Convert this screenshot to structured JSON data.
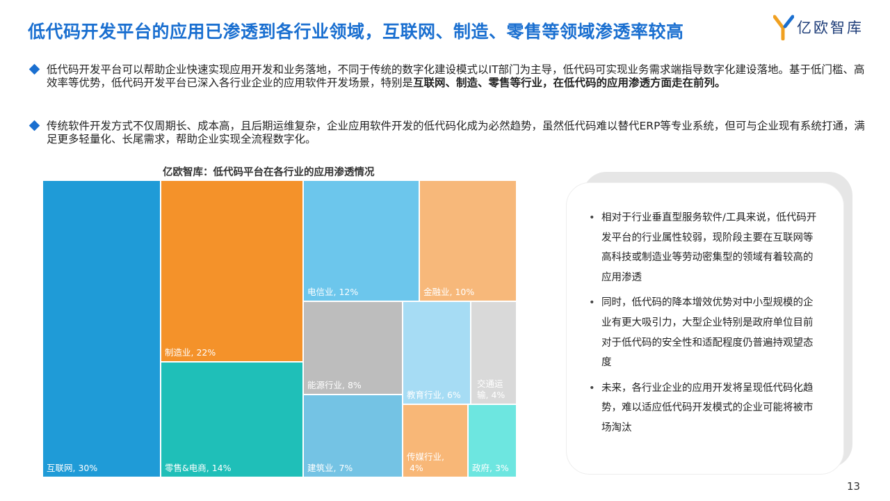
{
  "header": {
    "title": "低代码开发平台的应用已渗透到各行业领域，互联网、制造、零售等领域渗透率较高",
    "logo_text": "亿欧智库"
  },
  "bullets": [
    {
      "text_plain": "低代码开发平台可以帮助企业快速实现应用开发和业务落地，不同于传统的数字化建设模式以IT部门为主导，低代码可实现业务需求端指导数字化建设落地。基于低门槛、高效率等优势，低代码开发平台已深入各行业企业的应用软件开发场景，特别是",
      "text_bold": "互联网、制造、零售等行业，在低代码的应用渗透方面走在前列。"
    },
    {
      "text_plain": "传统软件开发方式不仅周期长、成本高，且后期运维复杂，企业应用软件开发的低代码化成为必然趋势，虽然低代码难以替代ERP等专业系统，但可与企业现有系统打通，满足更多轻量化、长尾需求，帮助企业实现全流程数字化。"
    }
  ],
  "chart_data": {
    "type": "treemap",
    "title": "亿欧智库：低代码平台在各行业的应用渗透情况",
    "items": [
      {
        "name": "互联网",
        "value": 30,
        "label": "互联网, 30%",
        "color": "#1f9bd7"
      },
      {
        "name": "制造业",
        "value": 22,
        "label": "制造业, 22%",
        "color": "#f4922a"
      },
      {
        "name": "零售&电商",
        "value": 14,
        "label": "零售&电商, 14%",
        "color": "#1fbfb8"
      },
      {
        "name": "电信业",
        "value": 12,
        "label": "电信业, 12%",
        "color": "#6cc6ec"
      },
      {
        "name": "金融业",
        "value": 10,
        "label": "金融业, 10%",
        "color": "#f7b87a"
      },
      {
        "name": "能源行业",
        "value": 8,
        "label": "能源行业, 8%",
        "color": "#bdbdbd"
      },
      {
        "name": "教育行业",
        "value": 6,
        "label": "教育行业, 6%",
        "color": "#a6dcf4"
      },
      {
        "name": "交通运输",
        "value": 4,
        "label": "交通运输, 4%",
        "color": "#d9d9d9"
      },
      {
        "name": "建筑业",
        "value": 7,
        "label": "建筑业, 7%",
        "color": "#74c3e4"
      },
      {
        "name": "传媒行业",
        "value": 4,
        "label": "传媒行业, 4%",
        "color": "#f8b777"
      },
      {
        "name": "政府",
        "value": 3,
        "label": "政府, 3%",
        "color": "#6de6e0"
      }
    ]
  },
  "notes": [
    "相对于行业垂直型服务软件/工具来说，低代码开发平台的行业属性较弱，现阶段主要在互联网等高科技或制造业等劳动密集型的领域有着较高的应用渗透",
    "同时，低代码的降本增效优势对中小型规模的企业有更大吸引力，大型企业特别是政府单位目前对于低代码的安全性和适配程度仍普遍持观望态度",
    "未来，各行业企业的应用开发将呈现低代码化趋势，难以适应低代码开发模式的企业可能将被市场淘汰"
  ],
  "page_number": "13"
}
